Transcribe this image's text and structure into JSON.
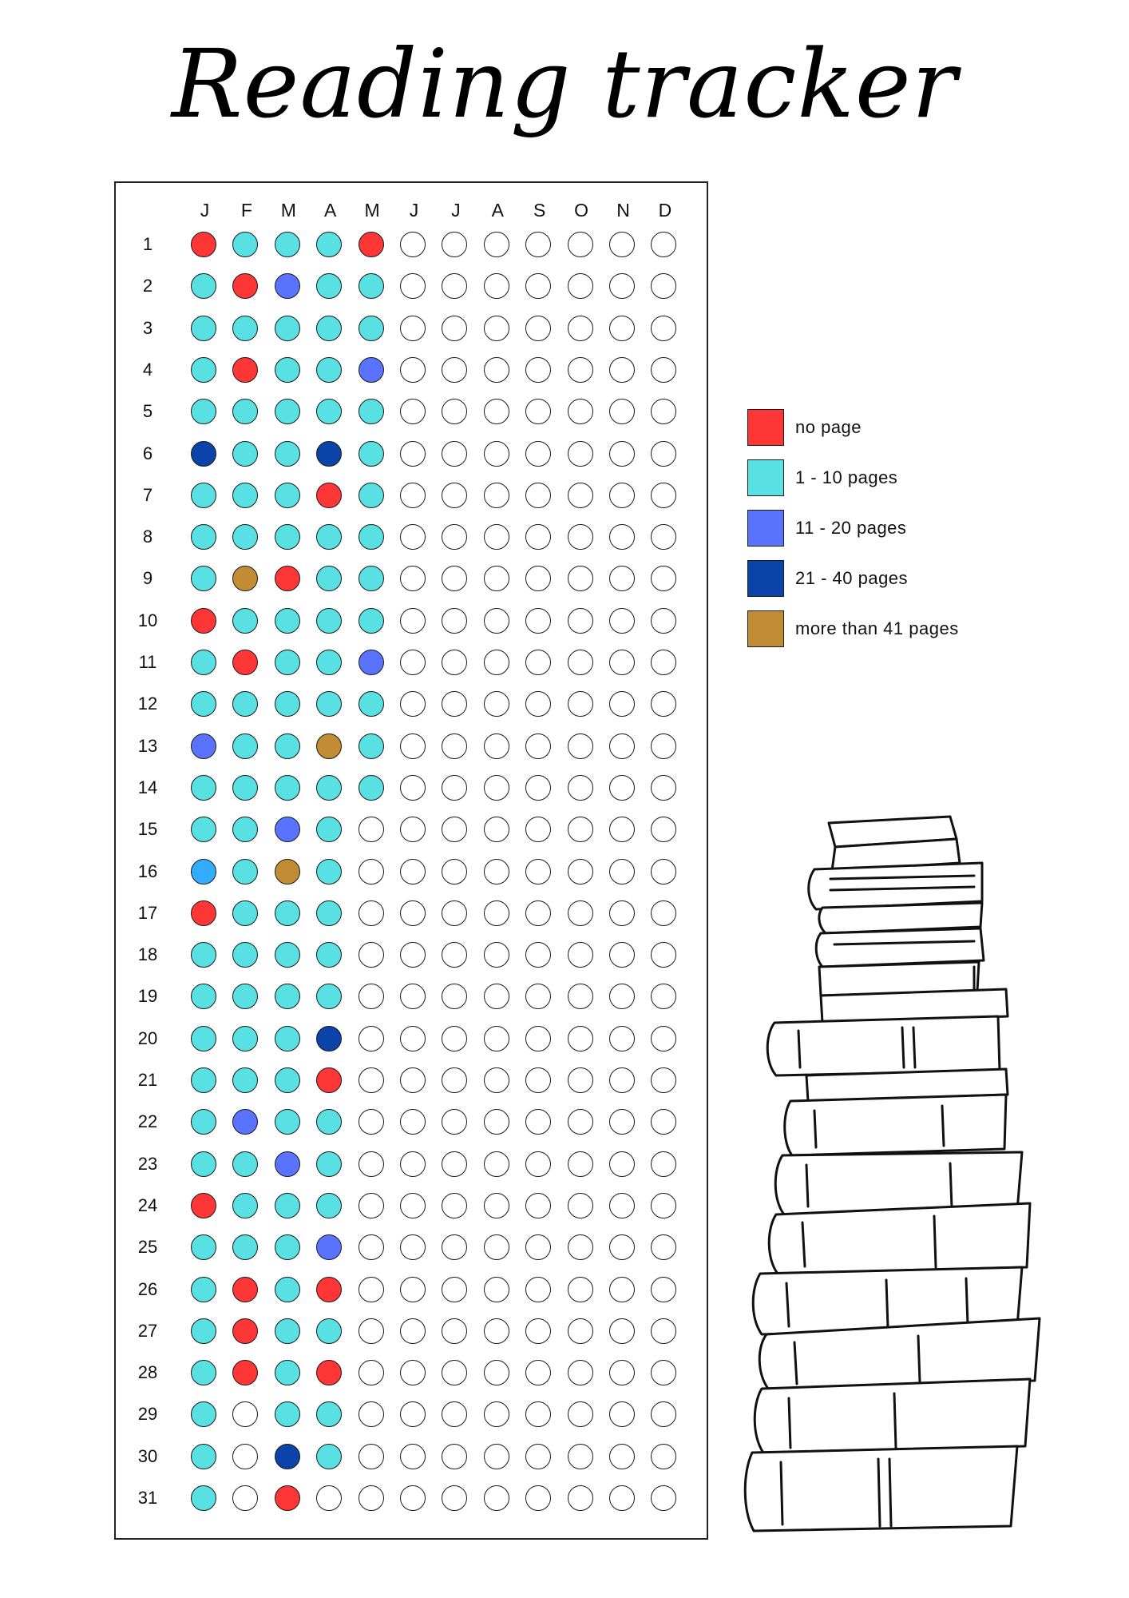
{
  "title": "Reading tracker",
  "months": [
    "J",
    "F",
    "M",
    "A",
    "M",
    "J",
    "J",
    "A",
    "S",
    "O",
    "N",
    "D"
  ],
  "days": [
    "1",
    "2",
    "3",
    "4",
    "5",
    "6",
    "7",
    "8",
    "9",
    "10",
    "11",
    "12",
    "13",
    "14",
    "15",
    "16",
    "17",
    "18",
    "19",
    "20",
    "21",
    "22",
    "23",
    "24",
    "25",
    "26",
    "27",
    "28",
    "29",
    "30",
    "31"
  ],
  "colors": {
    "none": "#ffffff",
    "red": "#ff3636",
    "cyan": "#58e0e3",
    "periwinkle": "#5a73ff",
    "navy": "#0a44a8",
    "gold": "#c28c34",
    "sky": "#31acff"
  },
  "legend": [
    {
      "color": "red",
      "label": "no page"
    },
    {
      "color": "cyan",
      "label": "1 - 10 pages"
    },
    {
      "color": "periwinkle",
      "label": "11 - 20 pages"
    },
    {
      "color": "navy",
      "label": "21 - 40 pages"
    },
    {
      "color": "gold",
      "label": "more than 41 pages"
    }
  ],
  "grid": [
    [
      "red",
      "cyan",
      "cyan",
      "cyan",
      "red"
    ],
    [
      "cyan",
      "red",
      "periwinkle",
      "cyan",
      "cyan"
    ],
    [
      "cyan",
      "cyan",
      "cyan",
      "cyan",
      "cyan"
    ],
    [
      "cyan",
      "red",
      "cyan",
      "cyan",
      "periwinkle"
    ],
    [
      "cyan",
      "cyan",
      "cyan",
      "cyan",
      "cyan"
    ],
    [
      "navy",
      "cyan",
      "cyan",
      "navy",
      "cyan"
    ],
    [
      "cyan",
      "cyan",
      "cyan",
      "red",
      "cyan"
    ],
    [
      "cyan",
      "cyan",
      "cyan",
      "cyan",
      "cyan"
    ],
    [
      "cyan",
      "gold",
      "red",
      "cyan",
      "cyan"
    ],
    [
      "red",
      "cyan",
      "cyan",
      "cyan",
      "cyan"
    ],
    [
      "cyan",
      "red",
      "cyan",
      "cyan",
      "periwinkle"
    ],
    [
      "cyan",
      "cyan",
      "cyan",
      "cyan",
      "cyan"
    ],
    [
      "periwinkle",
      "cyan",
      "cyan",
      "gold",
      "cyan"
    ],
    [
      "cyan",
      "cyan",
      "cyan",
      "cyan",
      "cyan"
    ],
    [
      "cyan",
      "cyan",
      "periwinkle",
      "cyan"
    ],
    [
      "sky",
      "cyan",
      "gold",
      "cyan"
    ],
    [
      "red",
      "cyan",
      "cyan",
      "cyan"
    ],
    [
      "cyan",
      "cyan",
      "cyan",
      "cyan"
    ],
    [
      "cyan",
      "cyan",
      "cyan",
      "cyan"
    ],
    [
      "cyan",
      "cyan",
      "cyan",
      "navy"
    ],
    [
      "cyan",
      "cyan",
      "cyan",
      "red"
    ],
    [
      "cyan",
      "periwinkle",
      "cyan",
      "cyan"
    ],
    [
      "cyan",
      "cyan",
      "periwinkle",
      "cyan"
    ],
    [
      "red",
      "cyan",
      "cyan",
      "cyan"
    ],
    [
      "cyan",
      "cyan",
      "cyan",
      "periwinkle"
    ],
    [
      "cyan",
      "red",
      "cyan",
      "red"
    ],
    [
      "cyan",
      "red",
      "cyan",
      "cyan"
    ],
    [
      "cyan",
      "red",
      "cyan",
      "red"
    ],
    [
      "cyan",
      "none",
      "cyan",
      "cyan"
    ],
    [
      "cyan",
      "none",
      "navy",
      "cyan"
    ],
    [
      "cyan",
      "none",
      "red"
    ]
  ]
}
